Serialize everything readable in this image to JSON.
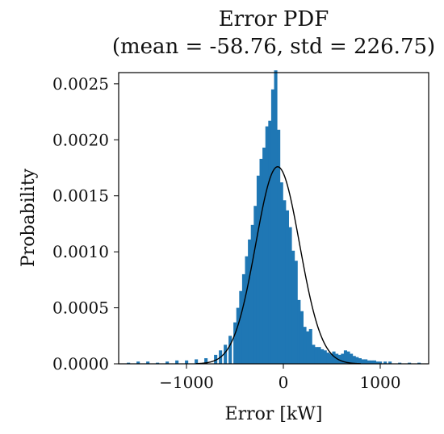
{
  "chart_data": {
    "type": "bar",
    "title": "Error PDF",
    "subtitle": "(mean = -58.76, std = 226.75)",
    "xlabel": "Error [kW]",
    "ylabel": "Probability",
    "xlim": [
      -1700,
      1500
    ],
    "ylim": [
      0,
      0.0026
    ],
    "grid": false,
    "x_ticks": [
      {
        "value": -1000,
        "label": "−1000"
      },
      {
        "value": 0,
        "label": "0"
      },
      {
        "value": 1000,
        "label": "1000"
      }
    ],
    "y_ticks": [
      {
        "value": 0.0,
        "label": "0.0000"
      },
      {
        "value": 0.0005,
        "label": "0.0005"
      },
      {
        "value": 0.001,
        "label": "0.0010"
      },
      {
        "value": 0.0015,
        "label": "0.0015"
      },
      {
        "value": 0.002,
        "label": "0.0020"
      },
      {
        "value": 0.0025,
        "label": "0.0025"
      }
    ],
    "bar_color": "#1f77b4",
    "bin_width": 31.5,
    "histogram": {
      "name": "histogram",
      "x": [
        -1600,
        -1500,
        -1400,
        -1300,
        -1200,
        -1100,
        -1000,
        -900,
        -800,
        -700,
        -650,
        -600,
        -550,
        -500,
        -470,
        -440,
        -410,
        -380,
        -350,
        -320,
        -290,
        -260,
        -230,
        -200,
        -170,
        -140,
        -110,
        -80,
        -50,
        -20,
        10,
        40,
        70,
        100,
        130,
        160,
        190,
        220,
        250,
        280,
        310,
        340,
        370,
        400,
        430,
        460,
        490,
        520,
        550,
        580,
        610,
        640,
        670,
        700,
        730,
        760,
        790,
        820,
        850,
        880,
        910,
        940,
        970,
        1000,
        1050,
        1100,
        1200,
        1300,
        1400
      ],
      "values": [
        1e-05,
        2e-05,
        2e-05,
        1e-05,
        2e-05,
        3e-05,
        3e-05,
        4e-05,
        5e-05,
        8e-05,
        0.00012,
        0.00017,
        0.00025,
        0.00037,
        0.0005,
        0.00065,
        0.0008,
        0.00096,
        0.00111,
        0.00124,
        0.00141,
        0.00168,
        0.00183,
        0.00193,
        0.00212,
        0.00217,
        0.00245,
        0.00262,
        0.00209,
        0.00162,
        0.00146,
        0.00137,
        0.00122,
        0.00101,
        0.00092,
        0.00057,
        0.00047,
        0.00033,
        0.00029,
        0.00031,
        0.00017,
        0.00015,
        0.00015,
        0.00013,
        0.00012,
        0.0001,
        9e-05,
        0.00011,
        9e-05,
        8e-05,
        9e-05,
        0.00012,
        0.00011,
        9e-05,
        7e-05,
        6e-05,
        5e-05,
        4e-05,
        4e-05,
        3e-05,
        3e-05,
        3e-05,
        2e-05,
        2e-05,
        2e-05,
        2e-05,
        1e-05,
        1e-05,
        1e-05
      ]
    },
    "fit": {
      "name": "normal fit",
      "mean": -58.76,
      "std": 226.75,
      "color": "#000000"
    }
  }
}
